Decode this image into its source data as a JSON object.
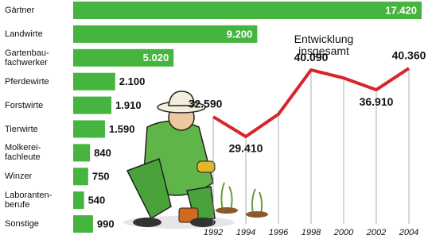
{
  "chart_data": [
    {
      "type": "bar",
      "orientation": "horizontal",
      "categories": [
        "Gärtner",
        "Landwirte",
        "Gartenbau-\nfachwerker",
        "Pferdewirte",
        "Forstwirte",
        "Tierwirte",
        "Molkerei-\nfachleute",
        "Winzer",
        "Laboranten-\nberufe",
        "Sonstige"
      ],
      "values": [
        17420,
        9200,
        5020,
        2100,
        1910,
        1590,
        840,
        750,
        540,
        990
      ],
      "value_labels": [
        "17.420",
        "9.200",
        "5.020",
        "2.100",
        "1.910",
        "1.590",
        "840",
        "750",
        "540",
        "990"
      ],
      "color": "#45b53f"
    },
    {
      "type": "line",
      "title": "Entwicklung insgesamt",
      "x": [
        1992,
        1994,
        1996,
        1998,
        2000,
        2002,
        2004
      ],
      "values": [
        32590,
        29410,
        33000,
        40090,
        38800,
        36910,
        40360
      ],
      "value_labels": [
        "32.590",
        "29.410",
        null,
        "40.090",
        null,
        "36.910",
        "40.360"
      ],
      "color": "#d7262b"
    }
  ]
}
